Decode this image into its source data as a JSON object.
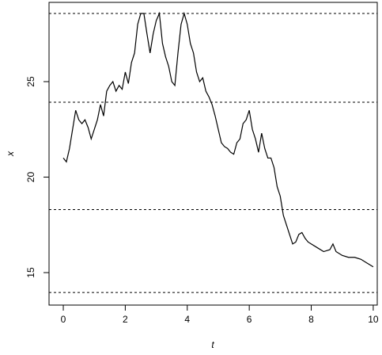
{
  "chart_data": {
    "type": "line",
    "xlabel": "t",
    "ylabel": "x",
    "x": [
      0,
      0.1,
      0.2,
      0.3,
      0.4,
      0.5,
      0.6,
      0.7,
      0.8,
      0.9,
      1.0,
      1.1,
      1.2,
      1.3,
      1.4,
      1.5,
      1.6,
      1.7,
      1.8,
      1.9,
      2.0,
      2.1,
      2.2,
      2.3,
      2.4,
      2.5,
      2.6,
      2.7,
      2.8,
      2.9,
      3.0,
      3.1,
      3.2,
      3.3,
      3.4,
      3.5,
      3.6,
      3.7,
      3.8,
      3.9,
      4.0,
      4.1,
      4.2,
      4.3,
      4.4,
      4.5,
      4.6,
      4.7,
      4.8,
      4.9,
      5.0,
      5.1,
      5.2,
      5.3,
      5.4,
      5.5,
      5.6,
      5.7,
      5.8,
      5.9,
      6.0,
      6.1,
      6.2,
      6.3,
      6.4,
      6.5,
      6.6,
      6.7,
      6.8,
      6.9,
      7.0,
      7.1,
      7.2,
      7.3,
      7.4,
      7.5,
      7.6,
      7.7,
      7.8,
      7.9,
      8.0,
      8.2,
      8.4,
      8.6,
      8.7,
      8.8,
      9.0,
      9.2,
      9.4,
      9.6,
      9.8,
      10.0
    ],
    "series": [
      {
        "color": "#000000",
        "values": [
          21.0,
          20.8,
          21.5,
          22.5,
          23.5,
          23.0,
          22.8,
          23.0,
          22.6,
          22.0,
          22.5,
          23.0,
          23.8,
          23.2,
          24.5,
          24.8,
          25.0,
          24.5,
          24.8,
          24.6,
          25.5,
          24.9,
          26.0,
          26.5,
          28.0,
          28.57,
          28.57,
          27.5,
          26.5,
          27.5,
          28.2,
          28.57,
          27.0,
          26.3,
          25.8,
          25.0,
          24.8,
          26.5,
          28.0,
          28.57,
          28.0,
          27.0,
          26.5,
          25.5,
          25.0,
          25.2,
          24.5,
          24.2,
          23.8,
          23.2,
          22.5,
          21.8,
          21.6,
          21.5,
          21.3,
          21.2,
          21.8,
          22.0,
          22.8,
          23.0,
          23.5,
          22.5,
          22.0,
          21.3,
          22.3,
          21.5,
          21.0,
          21.0,
          20.5,
          19.5,
          19.0,
          18.0,
          17.5,
          17.0,
          16.5,
          16.6,
          17.0,
          17.1,
          16.8,
          16.6,
          16.5,
          16.3,
          16.1,
          16.2,
          16.5,
          16.1,
          15.9,
          15.8,
          15.8,
          15.7,
          15.5,
          15.3
        ]
      }
    ],
    "hlines": [
      28.57,
      23.92,
      18.3,
      13.96
    ],
    "xlim": [
      -0.46,
      10.13
    ],
    "ylim": [
      13.3,
      29.15
    ],
    "xticks": [
      0,
      2,
      4,
      6,
      8,
      10
    ],
    "yticks": [
      15,
      20,
      25
    ]
  }
}
